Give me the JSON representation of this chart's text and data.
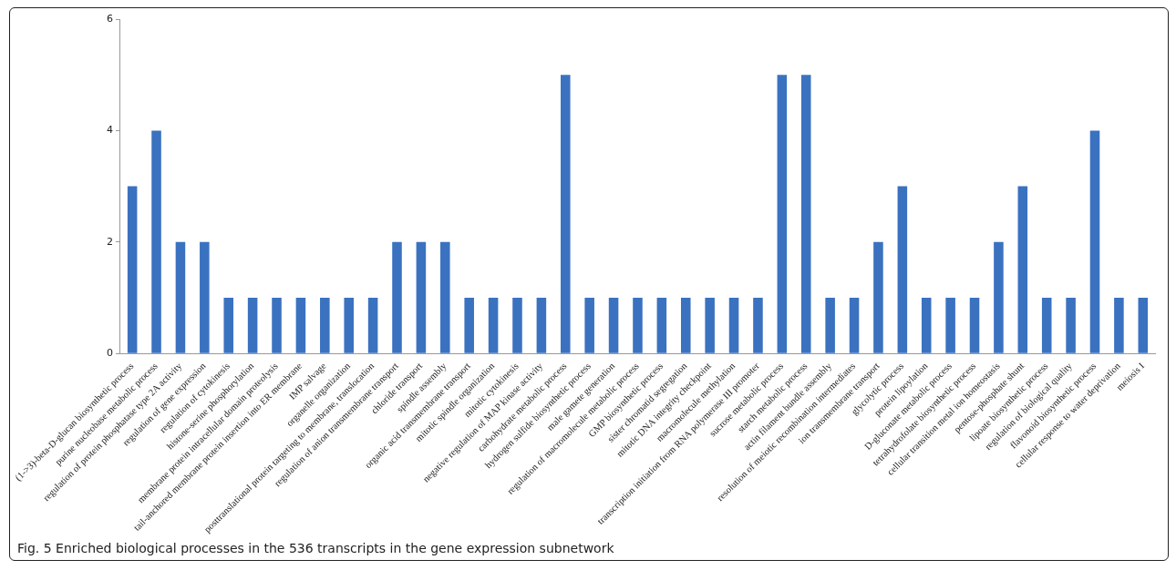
{
  "chart_data": {
    "type": "bar",
    "categories": [
      "(1->3)-beta-D-glucan biosynthetic process",
      "purine nucleobase metabolic process",
      "regulation of protein phosphatase type 2A activity",
      "regulation of gene expression",
      "regulation of cytokinesis",
      "histone-serine phosphorylation",
      "membrane protein intracellular domain proteolysis",
      "tail-anchored membrane protein insertion into ER membrane",
      "IMP salvage",
      "organelle organization",
      "posttranslational protein targeting to membrane, translocation",
      "regulation of anion transmembrane transport",
      "chloride transport",
      "spindle assembly",
      "organic acid transmembrane transport",
      "mitotic spindle organization",
      "mitotic cytokinesis",
      "negative regulation of MAP kinase activity",
      "carbohydrate metabolic process",
      "hydrogen sulfide biosynthetic process",
      "male gamete generation",
      "regulation of macromolecule metabolic process",
      "GMP biosynthetic process",
      "sister chromatid segregation",
      "mitotic DNA integrity checkpoint",
      "macromolecule methylation",
      "transcription initiation from RNA polymerase III promoter",
      "sucrose metabolic process",
      "starch metabolic process",
      "actin filament bundle assembly",
      "resolution of meiotic recombination intermediates",
      "ion transmembrane transport",
      "glycolytic process",
      "protein lipoylation",
      "D-gluconate metabolic process",
      "tetrahydrofolate biosynthetic process",
      "cellular transition metal ion homeostasis",
      "pentose-phosphate shunt",
      "lipoate biosynthetic process",
      "regulation of biological quality",
      "flavonoid biosynthetic process",
      "cellular response to water deprivation",
      "meiosis I"
    ],
    "values": [
      3,
      4,
      2,
      2,
      1,
      1,
      1,
      1,
      1,
      1,
      1,
      2,
      2,
      2,
      1,
      1,
      1,
      1,
      5,
      1,
      1,
      1,
      1,
      1,
      1,
      1,
      1,
      5,
      5,
      1,
      1,
      2,
      3,
      1,
      1,
      1,
      2,
      3,
      1,
      1,
      4,
      1,
      1
    ],
    "color": "#3a72c0",
    "ylim": [
      0,
      6
    ],
    "yticks": [
      0,
      2,
      4,
      6
    ],
    "grid": false,
    "legend": false,
    "annotations": [
      "Fig. 5 Enriched biological processes in the 536 transcripts in the gene expression subnetwork"
    ]
  }
}
